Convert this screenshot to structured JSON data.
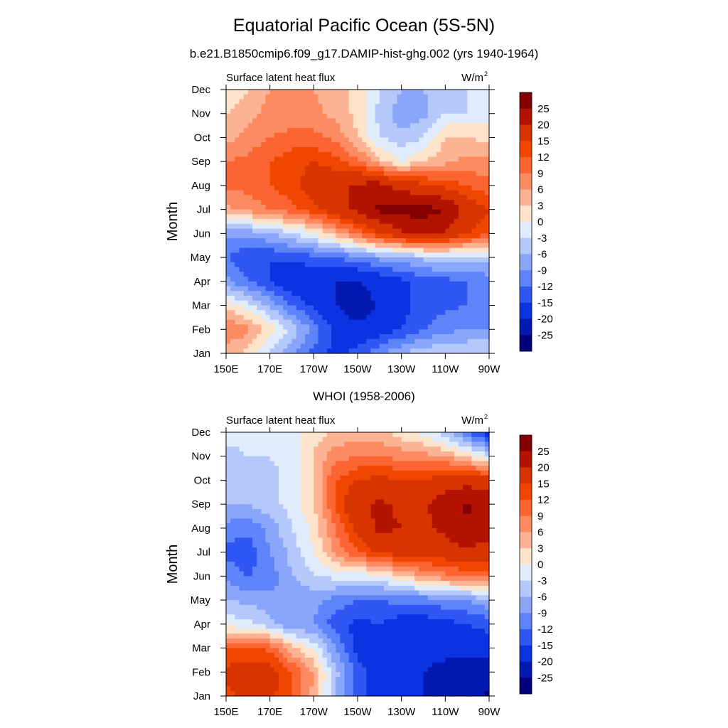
{
  "title": "Equatorial Pacific Ocean (5S-5N)",
  "subtitle": "b.e21.B1850cmip6.f09_g17.DAMIP-hist-ghg.002 (yrs 1940-1964)",
  "chart_data": [
    {
      "type": "heatmap",
      "panel_title": "",
      "left_string": "Surface latent heat flux",
      "units": "W/m",
      "units_sup": "2",
      "ylabel": "Month",
      "xlabel": "",
      "x_ticks": [
        "150E",
        "170E",
        "170W",
        "150W",
        "130W",
        "110W",
        "90W"
      ],
      "x_range_deg_east": [
        150,
        270
      ],
      "y_ticks": [
        "Jan",
        "Feb",
        "Mar",
        "Apr",
        "May",
        "Jun",
        "Jul",
        "Aug",
        "Sep",
        "Oct",
        "Nov",
        "Dec"
      ],
      "colorbar_labels": [
        "25",
        "20",
        "15",
        "12",
        "9",
        "6",
        "3",
        "0",
        "-3",
        "-6",
        "-9",
        "-12",
        "-15",
        "-20",
        "-25"
      ],
      "colorbar_colors": [
        "#850000",
        "#b31300",
        "#d73400",
        "#f14600",
        "#fc6532",
        "#fd8b62",
        "#fdb294",
        "#fee3cb",
        "#e0ebfc",
        "#b4c8fb",
        "#8aa6fa",
        "#5e84f9",
        "#2f57f4",
        "#0c33e2",
        "#0419b1",
        "#000080"
      ],
      "lon_grid": [
        150,
        160,
        170,
        180,
        190,
        200,
        210,
        220,
        230,
        240,
        250,
        260,
        270
      ],
      "values": [
        [
          4,
          2,
          -3,
          -8,
          -13,
          -16,
          -14,
          -10,
          -6,
          -4,
          -3,
          -3,
          -3
        ],
        [
          9,
          7,
          2,
          -4,
          -10,
          -16,
          -18,
          -17,
          -15,
          -12,
          -10,
          -9,
          -9
        ],
        [
          2,
          -2,
          -7,
          -12,
          -16,
          -20,
          -24,
          -19,
          -16,
          -14,
          -13,
          -12,
          -12
        ],
        [
          -8,
          -12,
          -15,
          -18,
          -19,
          -20,
          -20,
          -18,
          -16,
          -14,
          -13,
          -12,
          -11
        ],
        [
          -12,
          -15,
          -15,
          -14,
          -13,
          -12,
          -10,
          -8,
          -7,
          -5,
          -4,
          -4,
          -4
        ],
        [
          -8,
          -8,
          -6,
          -3,
          0,
          5,
          10,
          15,
          19,
          22,
          20,
          15,
          13
        ],
        [
          5,
          7,
          9,
          11,
          14,
          18,
          21,
          26,
          27,
          27,
          25,
          18,
          15
        ],
        [
          10,
          10,
          12,
          14,
          17,
          19,
          21,
          22,
          18,
          16,
          14,
          12,
          10
        ],
        [
          9,
          10,
          12,
          14,
          15,
          13,
          10,
          4,
          0,
          3,
          5,
          7,
          7
        ],
        [
          5,
          7,
          9,
          10,
          10,
          8,
          3,
          -3,
          -5,
          -3,
          3,
          3,
          2
        ],
        [
          3,
          5,
          7,
          7,
          7,
          5,
          2,
          -4,
          -8,
          -7,
          -3,
          -3,
          -2
        ],
        [
          0,
          3,
          6,
          6,
          6,
          4,
          2,
          -3,
          -6,
          -6,
          -4,
          -3,
          -2
        ]
      ]
    },
    {
      "type": "heatmap",
      "panel_title": "WHOI (1958-2006)",
      "left_string": "Surface latent heat flux",
      "units": "W/m",
      "units_sup": "2",
      "ylabel": "Month",
      "xlabel": "",
      "x_ticks": [
        "150E",
        "170E",
        "170W",
        "150W",
        "130W",
        "110W",
        "90W"
      ],
      "x_range_deg_east": [
        150,
        270
      ],
      "y_ticks": [
        "Jan",
        "Feb",
        "Mar",
        "Apr",
        "May",
        "Jun",
        "Jul",
        "Aug",
        "Sep",
        "Oct",
        "Nov",
        "Dec"
      ],
      "colorbar_labels": [
        "25",
        "20",
        "15",
        "12",
        "9",
        "6",
        "3",
        "0",
        "-3",
        "-6",
        "-9",
        "-12",
        "-15",
        "-20",
        "-25"
      ],
      "colorbar_colors": [
        "#850000",
        "#b31300",
        "#d73400",
        "#f14600",
        "#fc6532",
        "#fd8b62",
        "#fdb294",
        "#fee3cb",
        "#e0ebfc",
        "#b4c8fb",
        "#8aa6fa",
        "#5e84f9",
        "#2f57f4",
        "#0c33e2",
        "#0419b1",
        "#000080"
      ],
      "lon_grid": [
        150,
        160,
        170,
        180,
        190,
        200,
        210,
        220,
        230,
        240,
        250,
        260,
        270
      ],
      "values": [
        [
          14,
          16,
          16,
          12,
          5,
          -6,
          -14,
          -17,
          -17,
          -20,
          -21,
          -23,
          -26
        ],
        [
          16,
          17,
          17,
          12,
          6,
          -5,
          -13,
          -18,
          -18,
          -20,
          -22,
          -23,
          -23
        ],
        [
          12,
          13,
          11,
          4,
          -1,
          -9,
          -17,
          -18,
          -18,
          -18,
          -18,
          -18,
          -17
        ],
        [
          -1,
          -2,
          -5,
          -9,
          -9,
          -14,
          -16,
          -15,
          -17,
          -17,
          -16,
          -15,
          -14
        ],
        [
          -6,
          -7,
          -8,
          -9,
          -8,
          -10,
          -12,
          -12,
          -11,
          -11,
          -10,
          -9,
          -6
        ],
        [
          -10,
          -12,
          -11,
          -6,
          -3,
          -2,
          -2,
          -1,
          3,
          6,
          8,
          10,
          10
        ],
        [
          -13,
          -14,
          -9,
          -5,
          0,
          7,
          12,
          16,
          17,
          17,
          18,
          19,
          18
        ],
        [
          -10,
          -11,
          -8,
          -3,
          1,
          9,
          17,
          21,
          20,
          19,
          21,
          24,
          22
        ],
        [
          -6,
          -6,
          -4,
          -2,
          3,
          13,
          19,
          21,
          19,
          19,
          23,
          26,
          23
        ],
        [
          -4,
          -5,
          -4,
          -2,
          3,
          12,
          15,
          16,
          15,
          15,
          17,
          18,
          17
        ],
        [
          -4,
          -3,
          -3,
          -2,
          3,
          8,
          9,
          9,
          8,
          7,
          6,
          2,
          -3
        ],
        [
          -2,
          -2,
          -2,
          -1,
          2,
          3,
          4,
          4,
          1,
          -1,
          -5,
          -12,
          -18
        ]
      ]
    }
  ]
}
